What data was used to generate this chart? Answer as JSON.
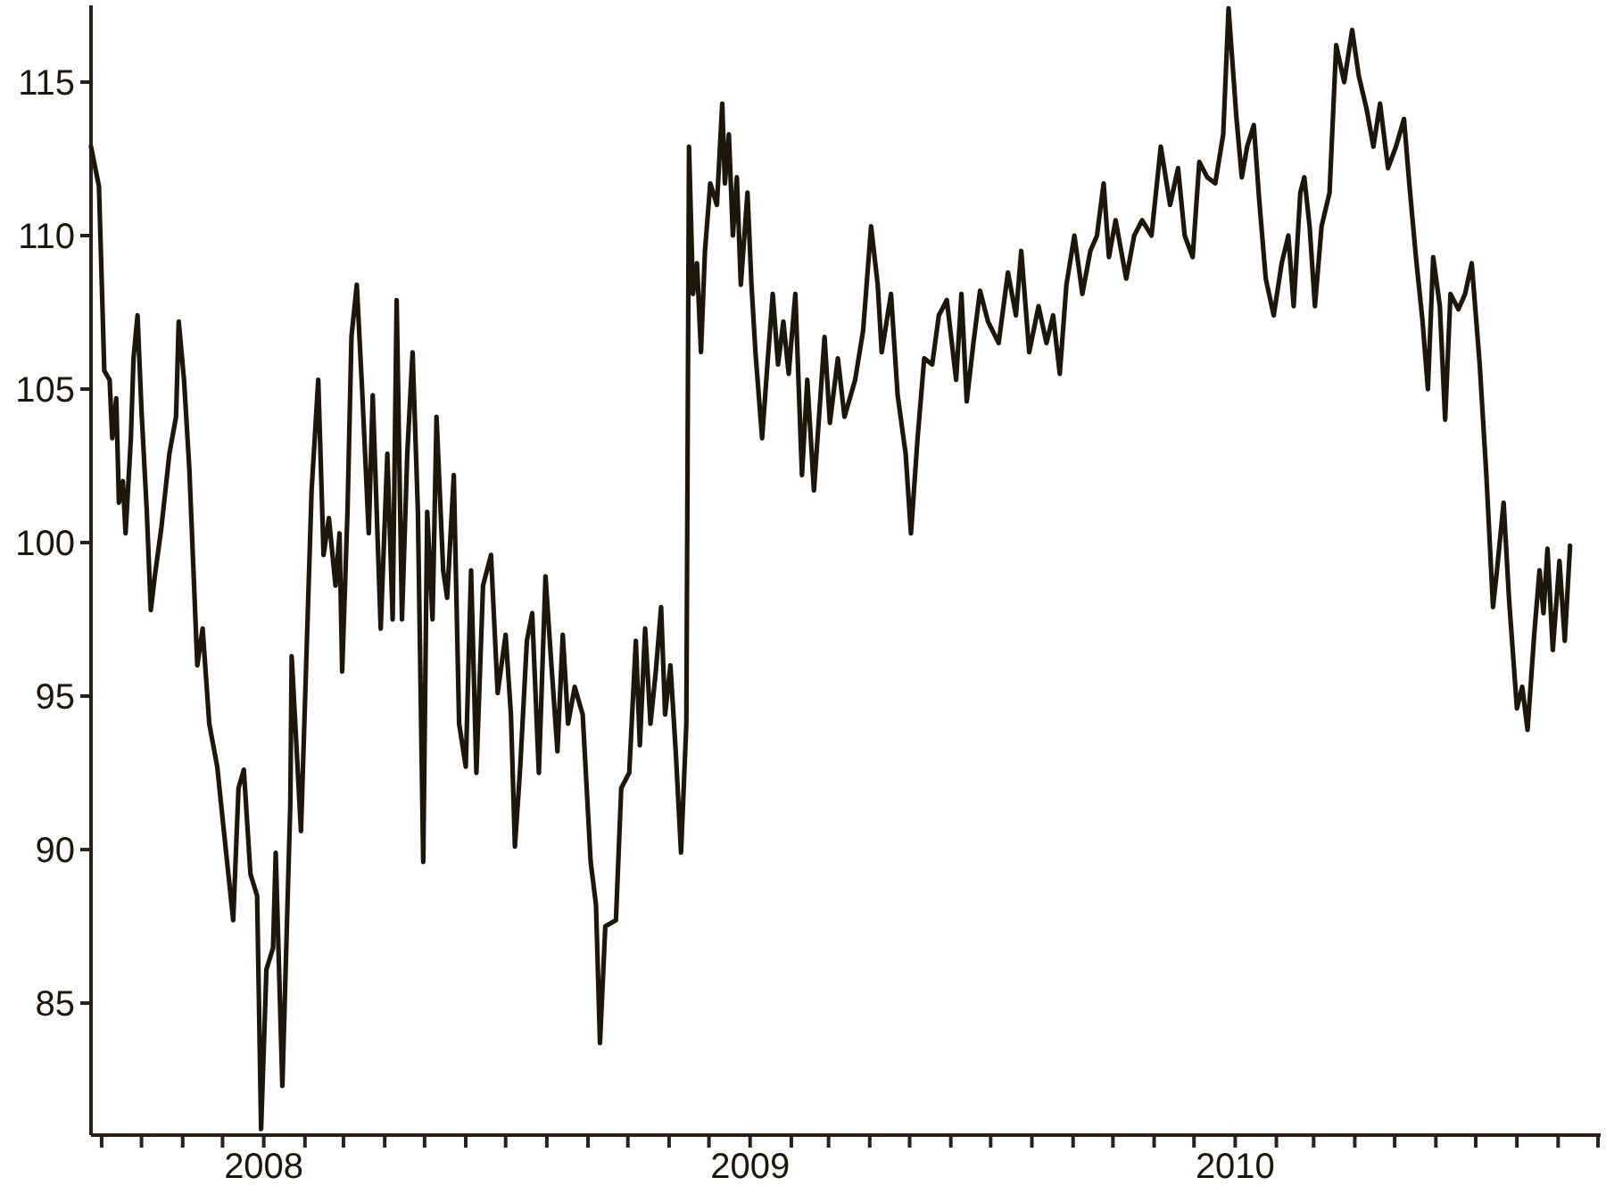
{
  "chart_data": {
    "type": "line",
    "color": "#1f160a",
    "x": [
      "2007-08-24",
      "2007-08-30",
      "2007-09-03",
      "2007-09-07",
      "2007-09-09",
      "2007-09-12",
      "2007-09-14",
      "2007-09-17",
      "2007-09-19",
      "2007-09-23",
      "2007-09-25",
      "2007-09-28",
      "2007-10-01",
      "2007-10-05",
      "2007-10-08",
      "2007-10-11",
      "2007-10-16",
      "2007-10-22",
      "2007-10-27",
      "2007-10-29",
      "2007-11-02",
      "2007-11-06",
      "2007-11-12",
      "2007-11-16",
      "2007-11-21",
      "2007-11-27",
      "2007-12-02",
      "2007-12-09",
      "2007-12-13",
      "2007-12-17",
      "2007-12-22",
      "2007-12-27",
      "2007-12-30",
      "2008-01-03",
      "2008-01-08",
      "2008-01-10",
      "2008-01-15",
      "2008-01-21",
      "2008-01-22",
      "2008-01-29",
      "2008-02-06",
      "2008-02-11",
      "2008-02-15",
      "2008-02-19",
      "2008-02-24",
      "2008-02-27",
      "2008-02-29",
      "2008-03-04",
      "2008-03-07",
      "2008-03-11",
      "2008-03-15",
      "2008-03-20",
      "2008-03-23",
      "2008-03-29",
      "2008-04-03",
      "2008-04-07",
      "2008-04-10",
      "2008-04-14",
      "2008-04-18",
      "2008-04-22",
      "2008-04-26",
      "2008-04-30",
      "2008-05-03",
      "2008-05-07",
      "2008-05-10",
      "2008-05-15",
      "2008-05-18",
      "2008-05-23",
      "2008-05-27",
      "2008-06-01",
      "2008-06-05",
      "2008-06-09",
      "2008-06-14",
      "2008-06-20",
      "2008-06-25",
      "2008-07-01",
      "2008-07-05",
      "2008-07-08",
      "2008-07-12",
      "2008-07-17",
      "2008-07-21",
      "2008-07-26",
      "2008-07-31",
      "2008-08-04",
      "2008-08-09",
      "2008-08-13",
      "2008-08-17",
      "2008-08-22",
      "2008-08-28",
      "2008-09-03",
      "2008-09-07",
      "2008-09-10",
      "2008-09-14",
      "2008-09-22",
      "2008-09-26",
      "2008-10-02",
      "2008-10-07",
      "2008-10-10",
      "2008-10-14",
      "2008-10-18",
      "2008-10-22",
      "2008-10-26",
      "2008-10-29",
      "2008-11-02",
      "2008-11-06",
      "2008-11-10",
      "2008-11-14",
      "2008-11-16",
      "2008-11-19",
      "2008-11-22",
      "2008-11-25",
      "2008-11-28",
      "2008-12-02",
      "2008-12-07",
      "2008-12-11",
      "2008-12-13",
      "2008-12-16",
      "2008-12-19",
      "2008-12-22",
      "2008-12-25",
      "2008-12-30",
      "2009-01-02",
      "2009-01-05",
      "2009-01-10",
      "2009-01-14",
      "2009-01-18",
      "2009-01-22",
      "2009-01-26",
      "2009-01-30",
      "2009-02-04",
      "2009-02-09",
      "2009-02-13",
      "2009-02-18",
      "2009-02-26",
      "2009-03-02",
      "2009-03-08",
      "2009-03-13",
      "2009-03-21",
      "2009-03-27",
      "2009-04-02",
      "2009-04-07",
      "2009-04-10",
      "2009-04-17",
      "2009-04-22",
      "2009-04-28",
      "2009-05-02",
      "2009-05-07",
      "2009-05-12",
      "2009-05-18",
      "2009-05-23",
      "2009-05-29",
      "2009-06-05",
      "2009-06-09",
      "2009-06-13",
      "2009-06-18",
      "2009-06-23",
      "2009-06-29",
      "2009-07-07",
      "2009-07-14",
      "2009-07-20",
      "2009-07-24",
      "2009-07-30",
      "2009-08-06",
      "2009-08-12",
      "2009-08-17",
      "2009-08-22",
      "2009-08-27",
      "2009-09-02",
      "2009-09-08",
      "2009-09-14",
      "2009-09-19",
      "2009-09-24",
      "2009-09-28",
      "2009-10-03",
      "2009-10-11",
      "2009-10-17",
      "2009-10-23",
      "2009-10-30",
      "2009-11-06",
      "2009-11-13",
      "2009-11-19",
      "2009-11-24",
      "2009-11-30",
      "2009-12-05",
      "2009-12-11",
      "2009-12-17",
      "2009-12-23",
      "2009-12-27",
      "2010-01-02",
      "2010-01-06",
      "2010-01-10",
      "2010-01-15",
      "2010-01-19",
      "2010-01-24",
      "2010-01-30",
      "2010-02-05",
      "2010-02-10",
      "2010-02-14",
      "2010-02-19",
      "2010-02-22",
      "2010-02-26",
      "2010-03-02",
      "2010-03-07",
      "2010-03-13",
      "2010-03-18",
      "2010-03-24",
      "2010-03-30",
      "2010-04-04",
      "2010-04-10",
      "2010-04-15",
      "2010-04-20",
      "2010-04-26",
      "2010-05-02",
      "2010-05-08",
      "2010-05-12",
      "2010-05-17",
      "2010-05-22",
      "2010-05-26",
      "2010-05-30",
      "2010-06-04",
      "2010-06-08",
      "2010-06-12",
      "2010-06-18",
      "2010-06-23",
      "2010-06-28",
      "2010-07-04",
      "2010-07-09",
      "2010-07-14",
      "2010-07-17",
      "2010-07-22",
      "2010-07-26",
      "2010-08-01",
      "2010-08-05",
      "2010-08-09",
      "2010-08-14",
      "2010-08-18",
      "2010-08-21",
      "2010-08-24",
      "2010-08-28",
      "2010-09-02",
      "2010-09-06",
      "2010-09-10"
    ],
    "values": [
      112.9,
      111.6,
      105.6,
      105.3,
      103.4,
      104.7,
      101.3,
      102.0,
      100.3,
      103.4,
      106.0,
      107.4,
      104.3,
      101.0,
      97.8,
      98.9,
      100.5,
      102.9,
      104.1,
      107.2,
      105.3,
      102.4,
      96.0,
      97.2,
      94.1,
      92.7,
      90.6,
      87.7,
      92.0,
      92.6,
      89.2,
      88.5,
      80.9,
      86.1,
      86.8,
      89.9,
      82.3,
      91.5,
      96.3,
      90.6,
      101.7,
      105.3,
      99.6,
      100.8,
      98.6,
      100.3,
      95.8,
      101.0,
      106.7,
      108.4,
      105.0,
      100.3,
      104.8,
      97.2,
      102.9,
      97.5,
      107.9,
      97.5,
      102.9,
      106.2,
      101.0,
      89.6,
      101.0,
      97.5,
      104.1,
      99.1,
      98.2,
      102.2,
      94.1,
      92.7,
      99.1,
      92.5,
      98.6,
      99.6,
      95.1,
      97.0,
      94.4,
      90.1,
      92.7,
      96.8,
      97.7,
      92.5,
      98.9,
      96.3,
      93.2,
      97.0,
      94.1,
      95.3,
      94.4,
      89.6,
      88.2,
      83.7,
      87.5,
      87.7,
      92.0,
      92.5,
      96.8,
      93.4,
      97.2,
      94.1,
      95.8,
      97.9,
      94.4,
      96.0,
      93.2,
      89.9,
      94.1,
      112.9,
      108.1,
      109.1,
      106.2,
      109.5,
      111.7,
      111.0,
      114.3,
      111.7,
      113.3,
      110.0,
      111.9,
      108.4,
      111.4,
      108.4,
      106.2,
      103.4,
      105.8,
      108.1,
      105.8,
      107.2,
      105.5,
      108.1,
      102.2,
      105.3,
      101.7,
      106.7,
      103.9,
      106.0,
      104.1,
      105.3,
      106.9,
      110.3,
      108.4,
      106.2,
      108.1,
      104.8,
      102.9,
      100.3,
      103.4,
      106.0,
      105.8,
      107.4,
      107.9,
      105.3,
      108.1,
      104.6,
      106.5,
      108.2,
      107.2,
      106.5,
      108.8,
      107.4,
      109.5,
      106.2,
      107.7,
      106.5,
      107.4,
      105.5,
      108.4,
      110.0,
      108.1,
      109.5,
      110.0,
      111.7,
      109.3,
      110.5,
      108.6,
      110.0,
      110.5,
      110.0,
      112.9,
      111.0,
      112.2,
      110.0,
      109.3,
      112.4,
      111.9,
      111.7,
      113.3,
      117.4,
      113.8,
      111.9,
      112.9,
      113.6,
      111.2,
      108.6,
      107.4,
      109.1,
      110.0,
      107.7,
      111.4,
      111.9,
      110.3,
      107.7,
      110.3,
      111.4,
      116.2,
      115.0,
      116.7,
      115.2,
      114.1,
      112.9,
      114.3,
      112.2,
      112.9,
      113.8,
      111.7,
      109.3,
      107.2,
      105.0,
      109.3,
      107.7,
      104.0,
      108.1,
      107.6,
      108.1,
      109.1,
      105.8,
      102.2,
      97.9,
      99.1,
      101.3,
      98.2,
      94.6,
      95.3,
      93.9,
      97.0,
      99.1,
      97.7,
      99.8,
      96.5,
      99.4,
      96.8,
      99.9
    ],
    "xlim": [
      "2007-08-24",
      "2010-10-03"
    ],
    "xticks": [
      {
        "value": "2007-09-01",
        "label": null
      },
      {
        "value": "2007-10-01",
        "label": null
      },
      {
        "value": "2007-11-01",
        "label": null
      },
      {
        "value": "2007-12-01",
        "label": null
      },
      {
        "value": "2008-01-01",
        "label": "2008"
      },
      {
        "value": "2008-02-01",
        "label": null
      },
      {
        "value": "2008-03-01",
        "label": null
      },
      {
        "value": "2008-04-01",
        "label": null
      },
      {
        "value": "2008-05-01",
        "label": null
      },
      {
        "value": "2008-06-01",
        "label": null
      },
      {
        "value": "2008-07-01",
        "label": null
      },
      {
        "value": "2008-08-01",
        "label": null
      },
      {
        "value": "2008-09-01",
        "label": null
      },
      {
        "value": "2008-10-01",
        "label": null
      },
      {
        "value": "2008-11-01",
        "label": null
      },
      {
        "value": "2008-12-01",
        "label": null
      },
      {
        "value": "2009-01-01",
        "label": "2009"
      },
      {
        "value": "2009-02-01",
        "label": null
      },
      {
        "value": "2009-03-01",
        "label": null
      },
      {
        "value": "2009-04-01",
        "label": null
      },
      {
        "value": "2009-05-01",
        "label": null
      },
      {
        "value": "2009-06-01",
        "label": null
      },
      {
        "value": "2009-07-01",
        "label": null
      },
      {
        "value": "2009-08-01",
        "label": null
      },
      {
        "value": "2009-09-01",
        "label": null
      },
      {
        "value": "2009-10-01",
        "label": null
      },
      {
        "value": "2009-11-01",
        "label": null
      },
      {
        "value": "2009-12-01",
        "label": null
      },
      {
        "value": "2010-01-01",
        "label": "2010"
      },
      {
        "value": "2010-02-01",
        "label": null
      },
      {
        "value": "2010-03-01",
        "label": null
      },
      {
        "value": "2010-04-01",
        "label": null
      },
      {
        "value": "2010-05-01",
        "label": null
      },
      {
        "value": "2010-06-01",
        "label": null
      },
      {
        "value": "2010-07-01",
        "label": null
      },
      {
        "value": "2010-08-01",
        "label": null
      },
      {
        "value": "2010-09-01",
        "label": null
      },
      {
        "value": "2010-10-01",
        "label": null
      }
    ],
    "ylim": [
      80.7,
      117.5
    ],
    "yticks": [
      85,
      90,
      95,
      100,
      105,
      110,
      115
    ]
  }
}
